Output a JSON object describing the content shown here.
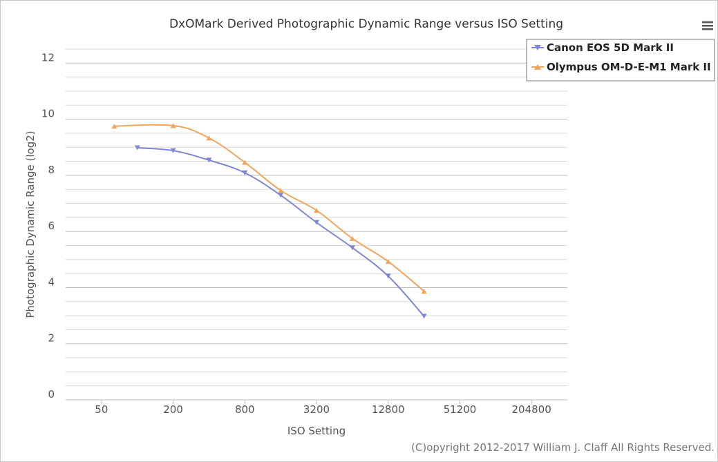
{
  "chart_data": {
    "type": "line",
    "title": "DxOMark Derived Photographic Dynamic Range versus ISO Setting",
    "xlabel": "ISO Setting",
    "ylabel": "Photographic Dynamic Range (log2)",
    "x_scale": "log2",
    "x_ticks": [
      50,
      200,
      800,
      3200,
      12800,
      51200,
      204800
    ],
    "x_tick_labels": [
      "50",
      "200",
      "800",
      "3200",
      "12800",
      "51200",
      "204800"
    ],
    "xlim": [
      25,
      409600
    ],
    "y_ticks": [
      0,
      2,
      4,
      6,
      8,
      10,
      12
    ],
    "y_tick_labels": [
      "0",
      "2",
      "4",
      "6",
      "8",
      "10",
      "12"
    ],
    "ylim": [
      0,
      12.5
    ],
    "minor_grid_step": 0.5,
    "series": [
      {
        "name": "Canon EOS 5D Mark II",
        "color": "#7f86d3",
        "marker": "triangle-down",
        "x": [
          100,
          200,
          400,
          800,
          1600,
          3200,
          6400,
          12800,
          25600
        ],
        "y": [
          8.98,
          8.88,
          8.54,
          8.09,
          7.29,
          6.32,
          5.42,
          4.41,
          2.98
        ]
      },
      {
        "name": "Olympus OM-D-E-M1 Mark II",
        "color": "#f2a45d",
        "marker": "triangle-up",
        "x": [
          64,
          200,
          400,
          800,
          1600,
          3200,
          6400,
          12800,
          25600
        ],
        "y": [
          9.75,
          9.77,
          9.33,
          8.46,
          7.46,
          6.75,
          5.75,
          4.93,
          3.87
        ]
      }
    ]
  },
  "credit": "(C)opyright 2012-2017 William J. Claff All Rights Reserved.",
  "menu": {
    "icon": "hamburger-menu-icon"
  }
}
